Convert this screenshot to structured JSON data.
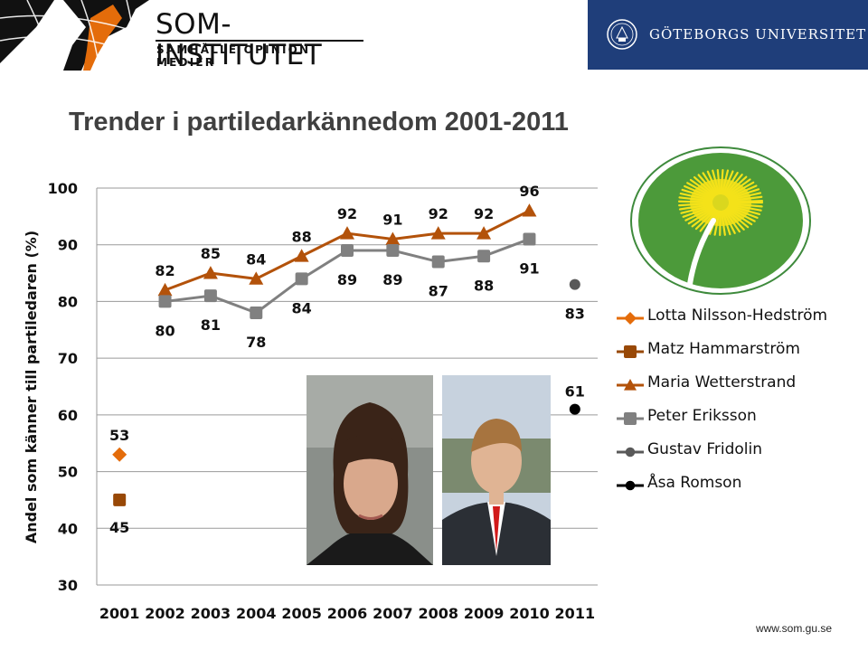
{
  "header": {
    "som_title": "SOM-INSTITUTET",
    "som_subtitle": "SAMHÄLLE OPINION MEDIER",
    "university": "GÖTEBORGS UNIVERSITET"
  },
  "footer": {
    "url": "www.som.gu.se"
  },
  "colors": {
    "orange": "#e46c0a",
    "brown": "#984806",
    "darkorange": "#b3520a",
    "gray": "#808080",
    "darkgray": "#595959",
    "black": "#000000",
    "banner": "#1f3e7a"
  },
  "chart_data": {
    "type": "line",
    "title": "Trender i partiledarkännedom 2001-2011",
    "xlabel": "",
    "ylabel": "Andel som känner till partiledaren (%)",
    "categories": [
      "2001",
      "2002",
      "2003",
      "2004",
      "2005",
      "2006",
      "2007",
      "2008",
      "2009",
      "2010",
      "2011"
    ],
    "yticks": [
      "30",
      "40",
      "50",
      "60",
      "70",
      "80",
      "90",
      "100"
    ],
    "ylim": [
      30,
      100
    ],
    "grid": true,
    "legend_position": "right",
    "series": [
      {
        "name": "Lotta Nilsson-Hedström",
        "marker": "diamond",
        "color": "#e46c0a",
        "values": [
          53,
          null,
          null,
          null,
          null,
          null,
          null,
          null,
          null,
          null,
          null
        ],
        "labels": [
          "53",
          "",
          "",
          "",
          "",
          "",
          "",
          "",
          "",
          "",
          ""
        ]
      },
      {
        "name": "Matz Hammarström",
        "marker": "square",
        "color": "#984806",
        "values": [
          45,
          null,
          null,
          null,
          null,
          null,
          null,
          null,
          null,
          null,
          null
        ],
        "labels": [
          "45",
          "",
          "",
          "",
          "",
          "",
          "",
          "",
          "",
          "",
          ""
        ]
      },
      {
        "name": "Maria Wetterstrand",
        "marker": "triangle",
        "color": "#b3520a",
        "values": [
          null,
          82,
          85,
          84,
          88,
          92,
          91,
          92,
          92,
          96,
          null
        ],
        "labels": [
          "",
          "82",
          "85",
          "84",
          "88",
          "92",
          "91",
          "92",
          "92",
          "96",
          ""
        ]
      },
      {
        "name": "Peter Eriksson",
        "marker": "square",
        "color": "#808080",
        "values": [
          null,
          80,
          81,
          78,
          84,
          89,
          89,
          87,
          88,
          91,
          null
        ],
        "labels": [
          "",
          "80",
          "81",
          "78",
          "84",
          "89",
          "89",
          "87",
          "88",
          "91",
          ""
        ]
      },
      {
        "name": "Gustav Fridolin",
        "marker": "circle",
        "color": "#595959",
        "values": [
          null,
          null,
          null,
          null,
          null,
          null,
          null,
          null,
          null,
          null,
          83
        ],
        "labels": [
          "",
          "",
          "",
          "",
          "",
          "",
          "",
          "",
          "",
          "",
          "83"
        ]
      },
      {
        "name": "Åsa Romson",
        "marker": "circle",
        "color": "#000000",
        "values": [
          null,
          null,
          null,
          null,
          null,
          null,
          null,
          null,
          null,
          null,
          61
        ],
        "labels": [
          "",
          "",
          "",
          "",
          "",
          "",
          "",
          "",
          "",
          "",
          "61"
        ]
      }
    ]
  }
}
